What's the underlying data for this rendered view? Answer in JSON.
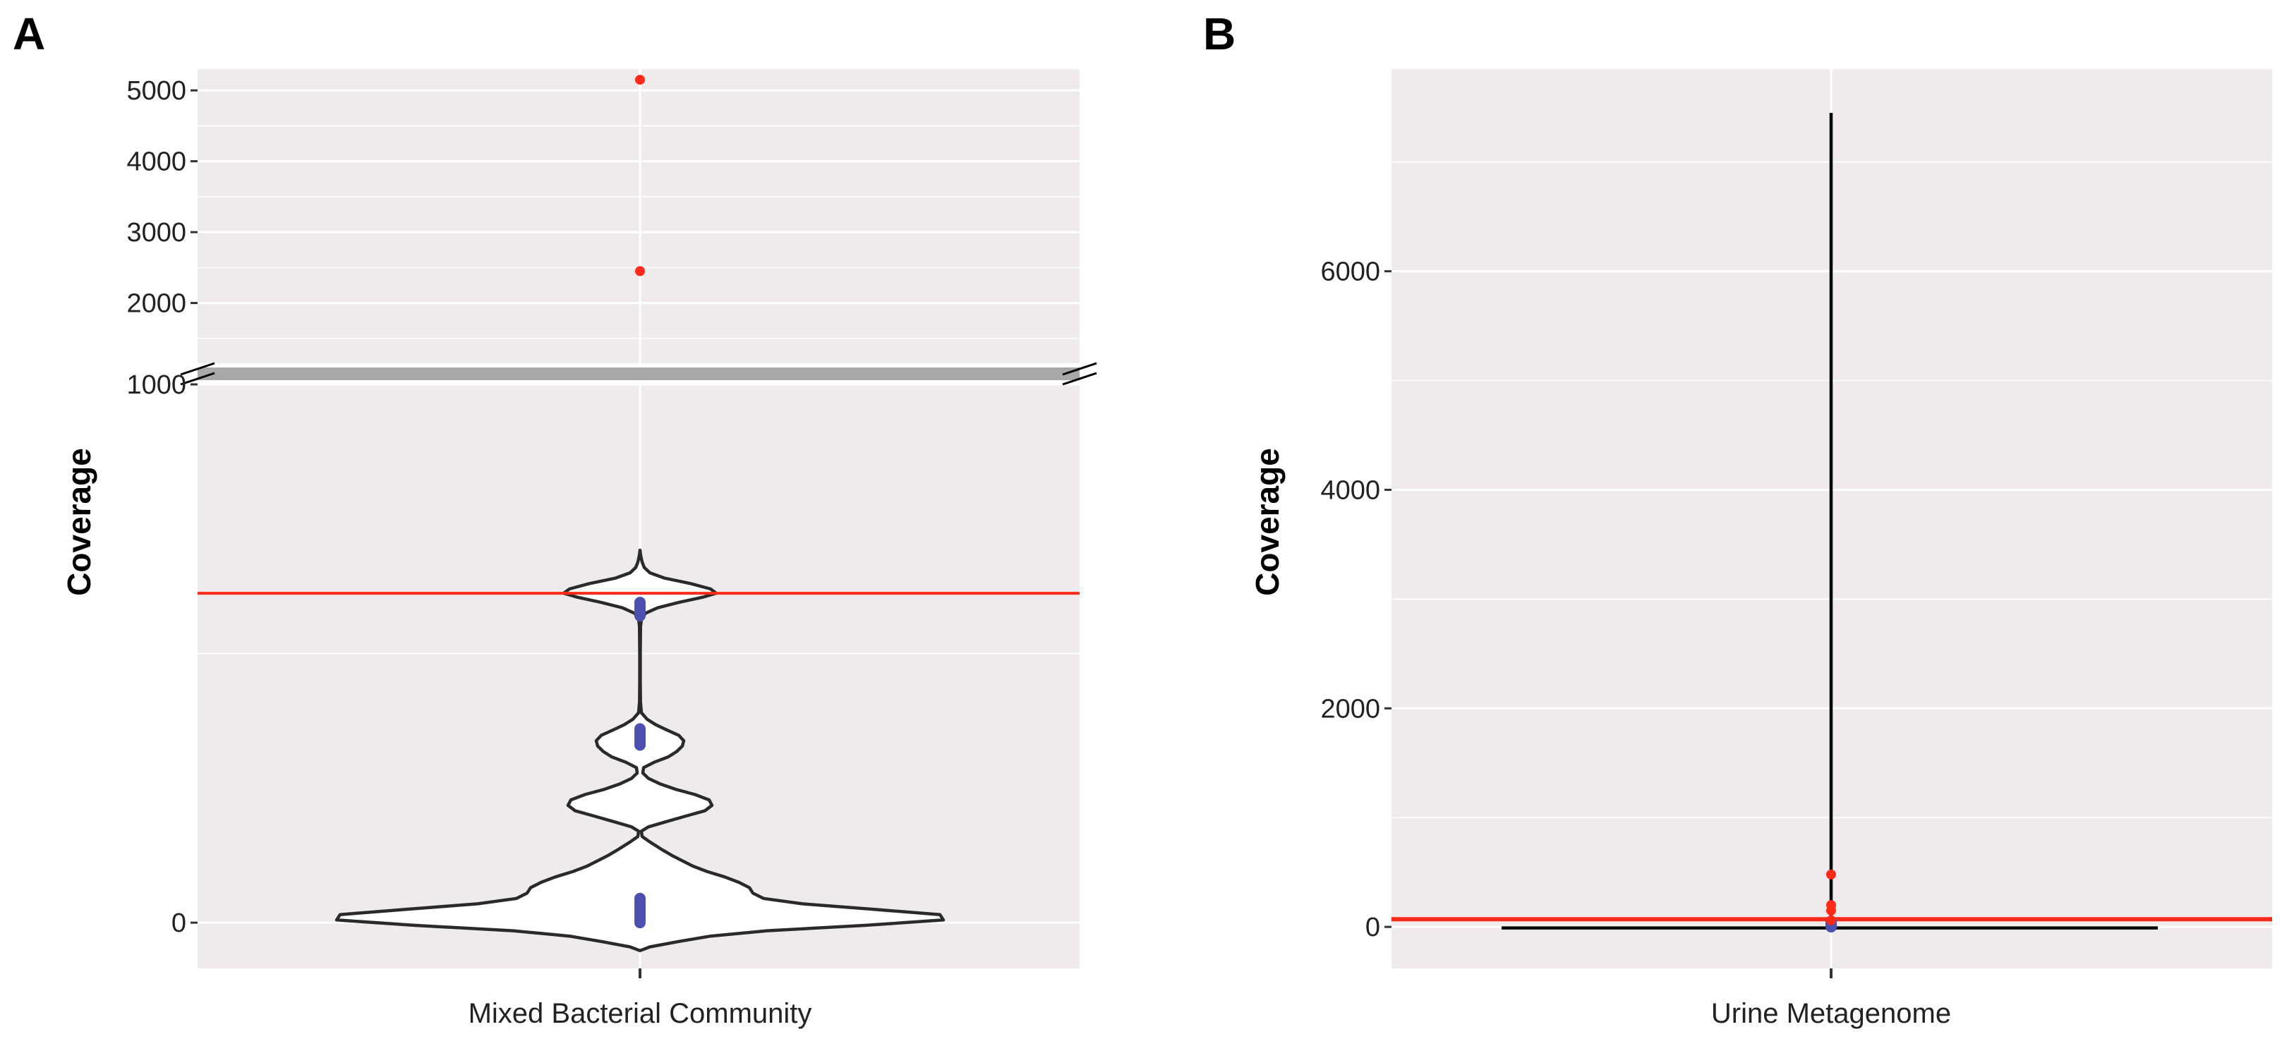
{
  "colors": {
    "panel_bg": "#efebec",
    "grid": "#ffffff",
    "threshold_line": "#ff2a1a",
    "outlier_point": "#ff2a1a",
    "data_point": "#4a4fb0",
    "violin_stroke": "#2a2a2a",
    "violin_fill": "#ffffff",
    "axis_break": "#a8a8a8",
    "whisker": "#000000"
  },
  "chart_data": [
    {
      "panel": "A",
      "type": "violin",
      "title": "",
      "xlabel": "",
      "ylabel": "Coverage",
      "category": "Mixed Bacterial Community",
      "broken_axis": true,
      "upper_segment": {
        "ylim": [
          1150,
          5300
        ],
        "ticks": [
          2000,
          3000,
          4000,
          5000
        ],
        "minor_ticks": [
          1500,
          2500,
          3500,
          4500
        ]
      },
      "lower_segment": {
        "ylim": [
          -85,
          1000
        ],
        "ticks": [
          0,
          1000
        ],
        "minor_ticks": [
          500
        ]
      },
      "threshold": 612,
      "outliers": [
        5150,
        2450
      ],
      "points": [
        595,
        590,
        585,
        580,
        575,
        570,
        360,
        355,
        350,
        345,
        340,
        335,
        330,
        45,
        40,
        35,
        30,
        25,
        20,
        15,
        10,
        5,
        0
      ],
      "violin_profile": [
        [
          -52,
          0
        ],
        [
          -45,
          14
        ],
        [
          -35,
          55
        ],
        [
          -25,
          100
        ],
        [
          -15,
          180
        ],
        [
          -5,
          320
        ],
        [
          5,
          430
        ],
        [
          15,
          425
        ],
        [
          25,
          330
        ],
        [
          35,
          230
        ],
        [
          45,
          175
        ],
        [
          55,
          160
        ],
        [
          65,
          155
        ],
        [
          75,
          140
        ],
        [
          85,
          120
        ],
        [
          95,
          95
        ],
        [
          105,
          75
        ],
        [
          115,
          60
        ],
        [
          125,
          45
        ],
        [
          135,
          32
        ],
        [
          150,
          14
        ],
        [
          160,
          3
        ],
        [
          170,
          2
        ],
        [
          178,
          12
        ],
        [
          188,
          38
        ],
        [
          198,
          65
        ],
        [
          208,
          92
        ],
        [
          218,
          102
        ],
        [
          228,
          98
        ],
        [
          238,
          78
        ],
        [
          248,
          50
        ],
        [
          258,
          28
        ],
        [
          268,
          12
        ],
        [
          278,
          4
        ],
        [
          288,
          5
        ],
        [
          298,
          20
        ],
        [
          308,
          40
        ],
        [
          318,
          52
        ],
        [
          328,
          60
        ],
        [
          338,
          62
        ],
        [
          348,
          55
        ],
        [
          358,
          38
        ],
        [
          368,
          22
        ],
        [
          378,
          10
        ],
        [
          390,
          2
        ],
        [
          410,
          0.7
        ],
        [
          450,
          0.4
        ],
        [
          500,
          0.4
        ],
        [
          550,
          0.8
        ],
        [
          565,
          2
        ],
        [
          575,
          8
        ],
        [
          585,
          25
        ],
        [
          595,
          55
        ],
        [
          605,
          90
        ],
        [
          612,
          108
        ],
        [
          620,
          100
        ],
        [
          630,
          72
        ],
        [
          640,
          35
        ],
        [
          650,
          14
        ],
        [
          660,
          6
        ],
        [
          670,
          3
        ],
        [
          682,
          1
        ],
        [
          692,
          0
        ]
      ]
    },
    {
      "panel": "B",
      "type": "boxplot",
      "title": "",
      "xlabel": "",
      "ylabel": "Coverage",
      "category": "Urine Metagenome",
      "ylim": [
        -380,
        7850
      ],
      "ticks": [
        0,
        2000,
        4000,
        6000
      ],
      "minor_ticks": [
        1000,
        3000,
        5000,
        7000
      ],
      "threshold": 70,
      "whisker_top": 7450,
      "baseline_value": -10,
      "outliers": [
        480,
        200,
        150,
        60
      ],
      "points": [
        50,
        30,
        15,
        5,
        0
      ]
    }
  ]
}
